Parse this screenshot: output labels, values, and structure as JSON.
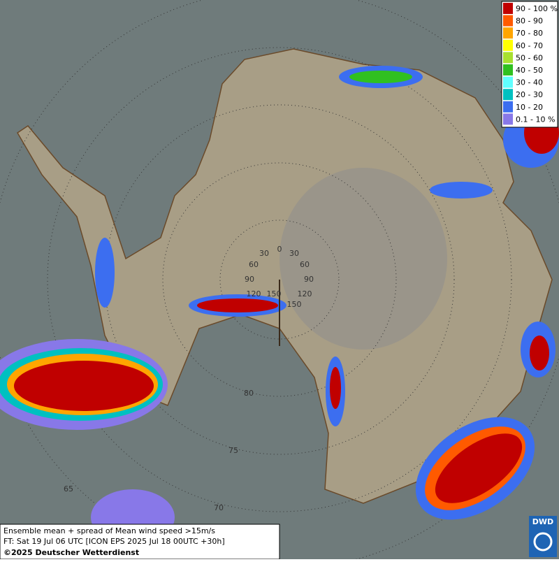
{
  "legend": {
    "entries": [
      {
        "label": "90 - 100 %",
        "color": "#c00000"
      },
      {
        "label": "80 - 90",
        "color": "#ff5a00"
      },
      {
        "label": "70 - 80",
        "color": "#ffa500"
      },
      {
        "label": "60 - 70",
        "color": "#ffff00"
      },
      {
        "label": "50 - 60",
        "color": "#a8e030"
      },
      {
        "label": "40 - 50",
        "color": "#30c020"
      },
      {
        "label": "30 - 40",
        "color": "#60ffff"
      },
      {
        "label": "20 - 30",
        "color": "#00c0c0"
      },
      {
        "label": "10 - 20",
        "color": "#3c6ef0"
      },
      {
        "label": "0.1 - 10 %",
        "color": "#8878e8"
      }
    ]
  },
  "graticule": {
    "longitude_labels": [
      "30",
      "0",
      "30",
      "60",
      "60",
      "90",
      "90",
      "120",
      "120",
      "150",
      "150"
    ],
    "latitude_labels": [
      "80",
      "75",
      "70",
      "65"
    ]
  },
  "caption": {
    "line1": "Ensemble mean + spread of Mean wind speed >15m/s",
    "line2": "FT: Sat 19 Jul 06 UTC [ICON EPS 2025 Jul 18 00UTC +30h]",
    "line3": "©2025 Deutscher Wetterdienst"
  },
  "logo": {
    "text": "DWD"
  }
}
